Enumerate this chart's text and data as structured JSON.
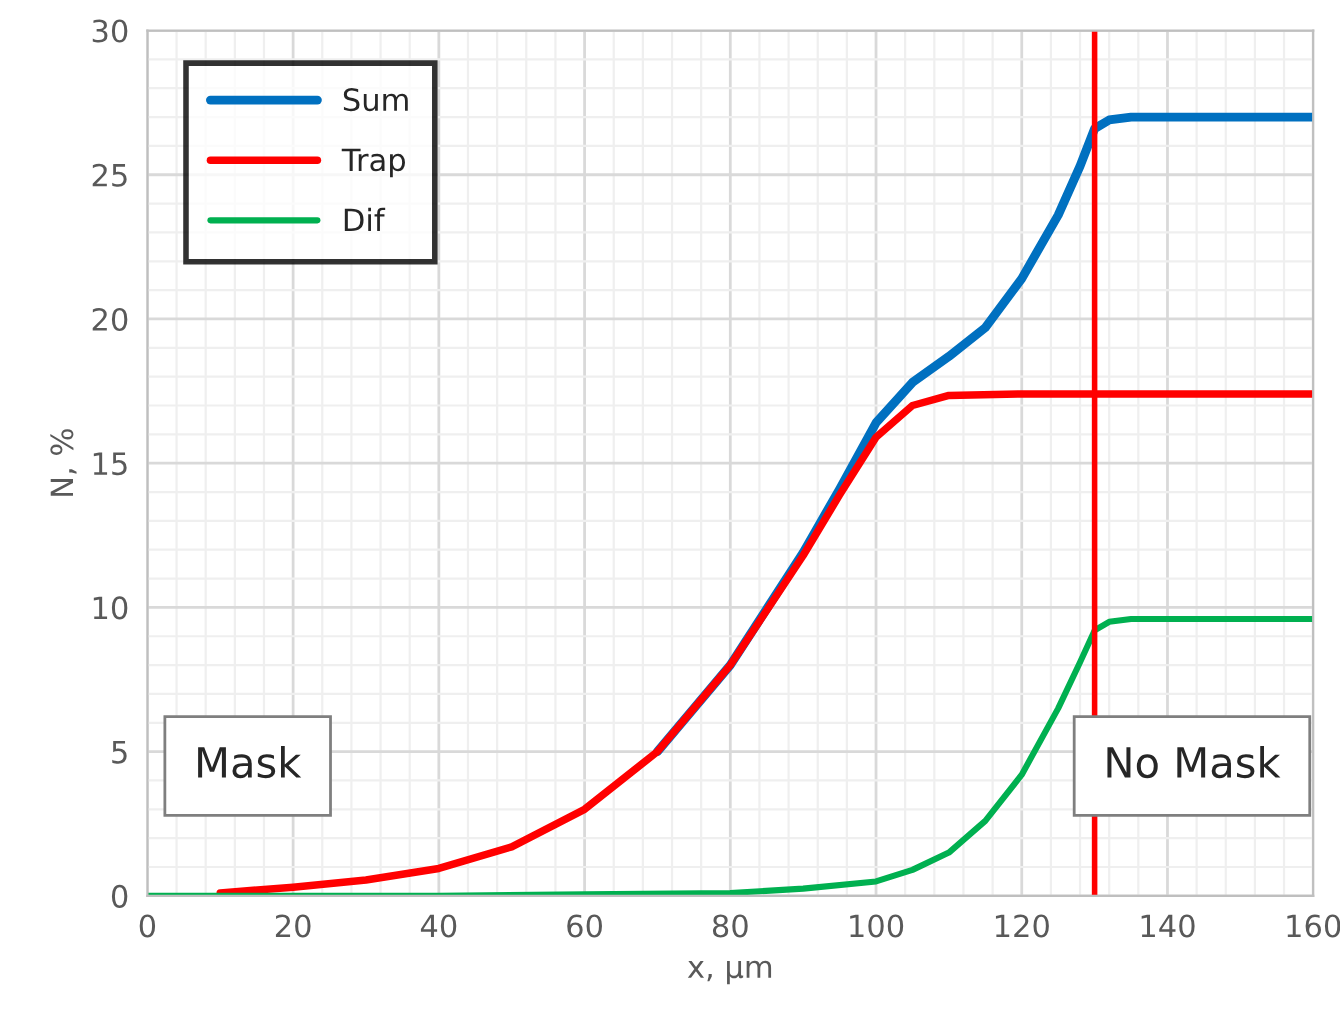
{
  "chart_data": {
    "type": "line",
    "xlabel": "x, µm",
    "ylabel": "N, %",
    "xlim": [
      0,
      160
    ],
    "ylim": [
      0,
      30
    ],
    "xticks": [
      0,
      20,
      40,
      60,
      80,
      100,
      120,
      140,
      160
    ],
    "yticks": [
      0,
      5,
      10,
      15,
      20,
      25,
      30
    ],
    "grid": true,
    "legend": "top left",
    "marker": "none",
    "line_style": "solid",
    "series": [
      {
        "name": "Sum",
        "color": "#0070c0",
        "x": [
          70,
          80,
          90,
          95,
          100,
          105,
          110,
          115,
          120,
          125,
          128,
          130,
          132,
          135,
          160
        ],
        "values": [
          5.0,
          8.0,
          11.9,
          14.1,
          16.4,
          17.8,
          18.7,
          19.7,
          21.4,
          23.6,
          25.3,
          26.6,
          26.9,
          27.0,
          27.0
        ]
      },
      {
        "name": "Trap",
        "color": "#ff0000",
        "x": [
          10,
          20,
          30,
          40,
          50,
          60,
          70,
          80,
          90,
          95,
          100,
          105,
          110,
          120,
          130,
          160
        ],
        "values": [
          0.1,
          0.3,
          0.55,
          0.95,
          1.7,
          3.0,
          5.0,
          8.0,
          11.8,
          13.9,
          15.9,
          17.0,
          17.35,
          17.4,
          17.4,
          17.4
        ]
      },
      {
        "name": "Dif",
        "color": "#00b050",
        "x": [
          0,
          20,
          40,
          60,
          80,
          90,
          100,
          105,
          110,
          115,
          120,
          125,
          128,
          130,
          132,
          135,
          160
        ],
        "values": [
          0,
          0,
          0,
          0.05,
          0.1,
          0.25,
          0.5,
          0.9,
          1.5,
          2.6,
          4.2,
          6.5,
          8.1,
          9.2,
          9.5,
          9.6,
          9.6
        ]
      }
    ],
    "ref_lines": [
      {
        "axis": "x",
        "value": 130,
        "color": "#ff0000",
        "line_style": "solid"
      }
    ],
    "annotations": [
      "Mask",
      "No Mask"
    ]
  }
}
